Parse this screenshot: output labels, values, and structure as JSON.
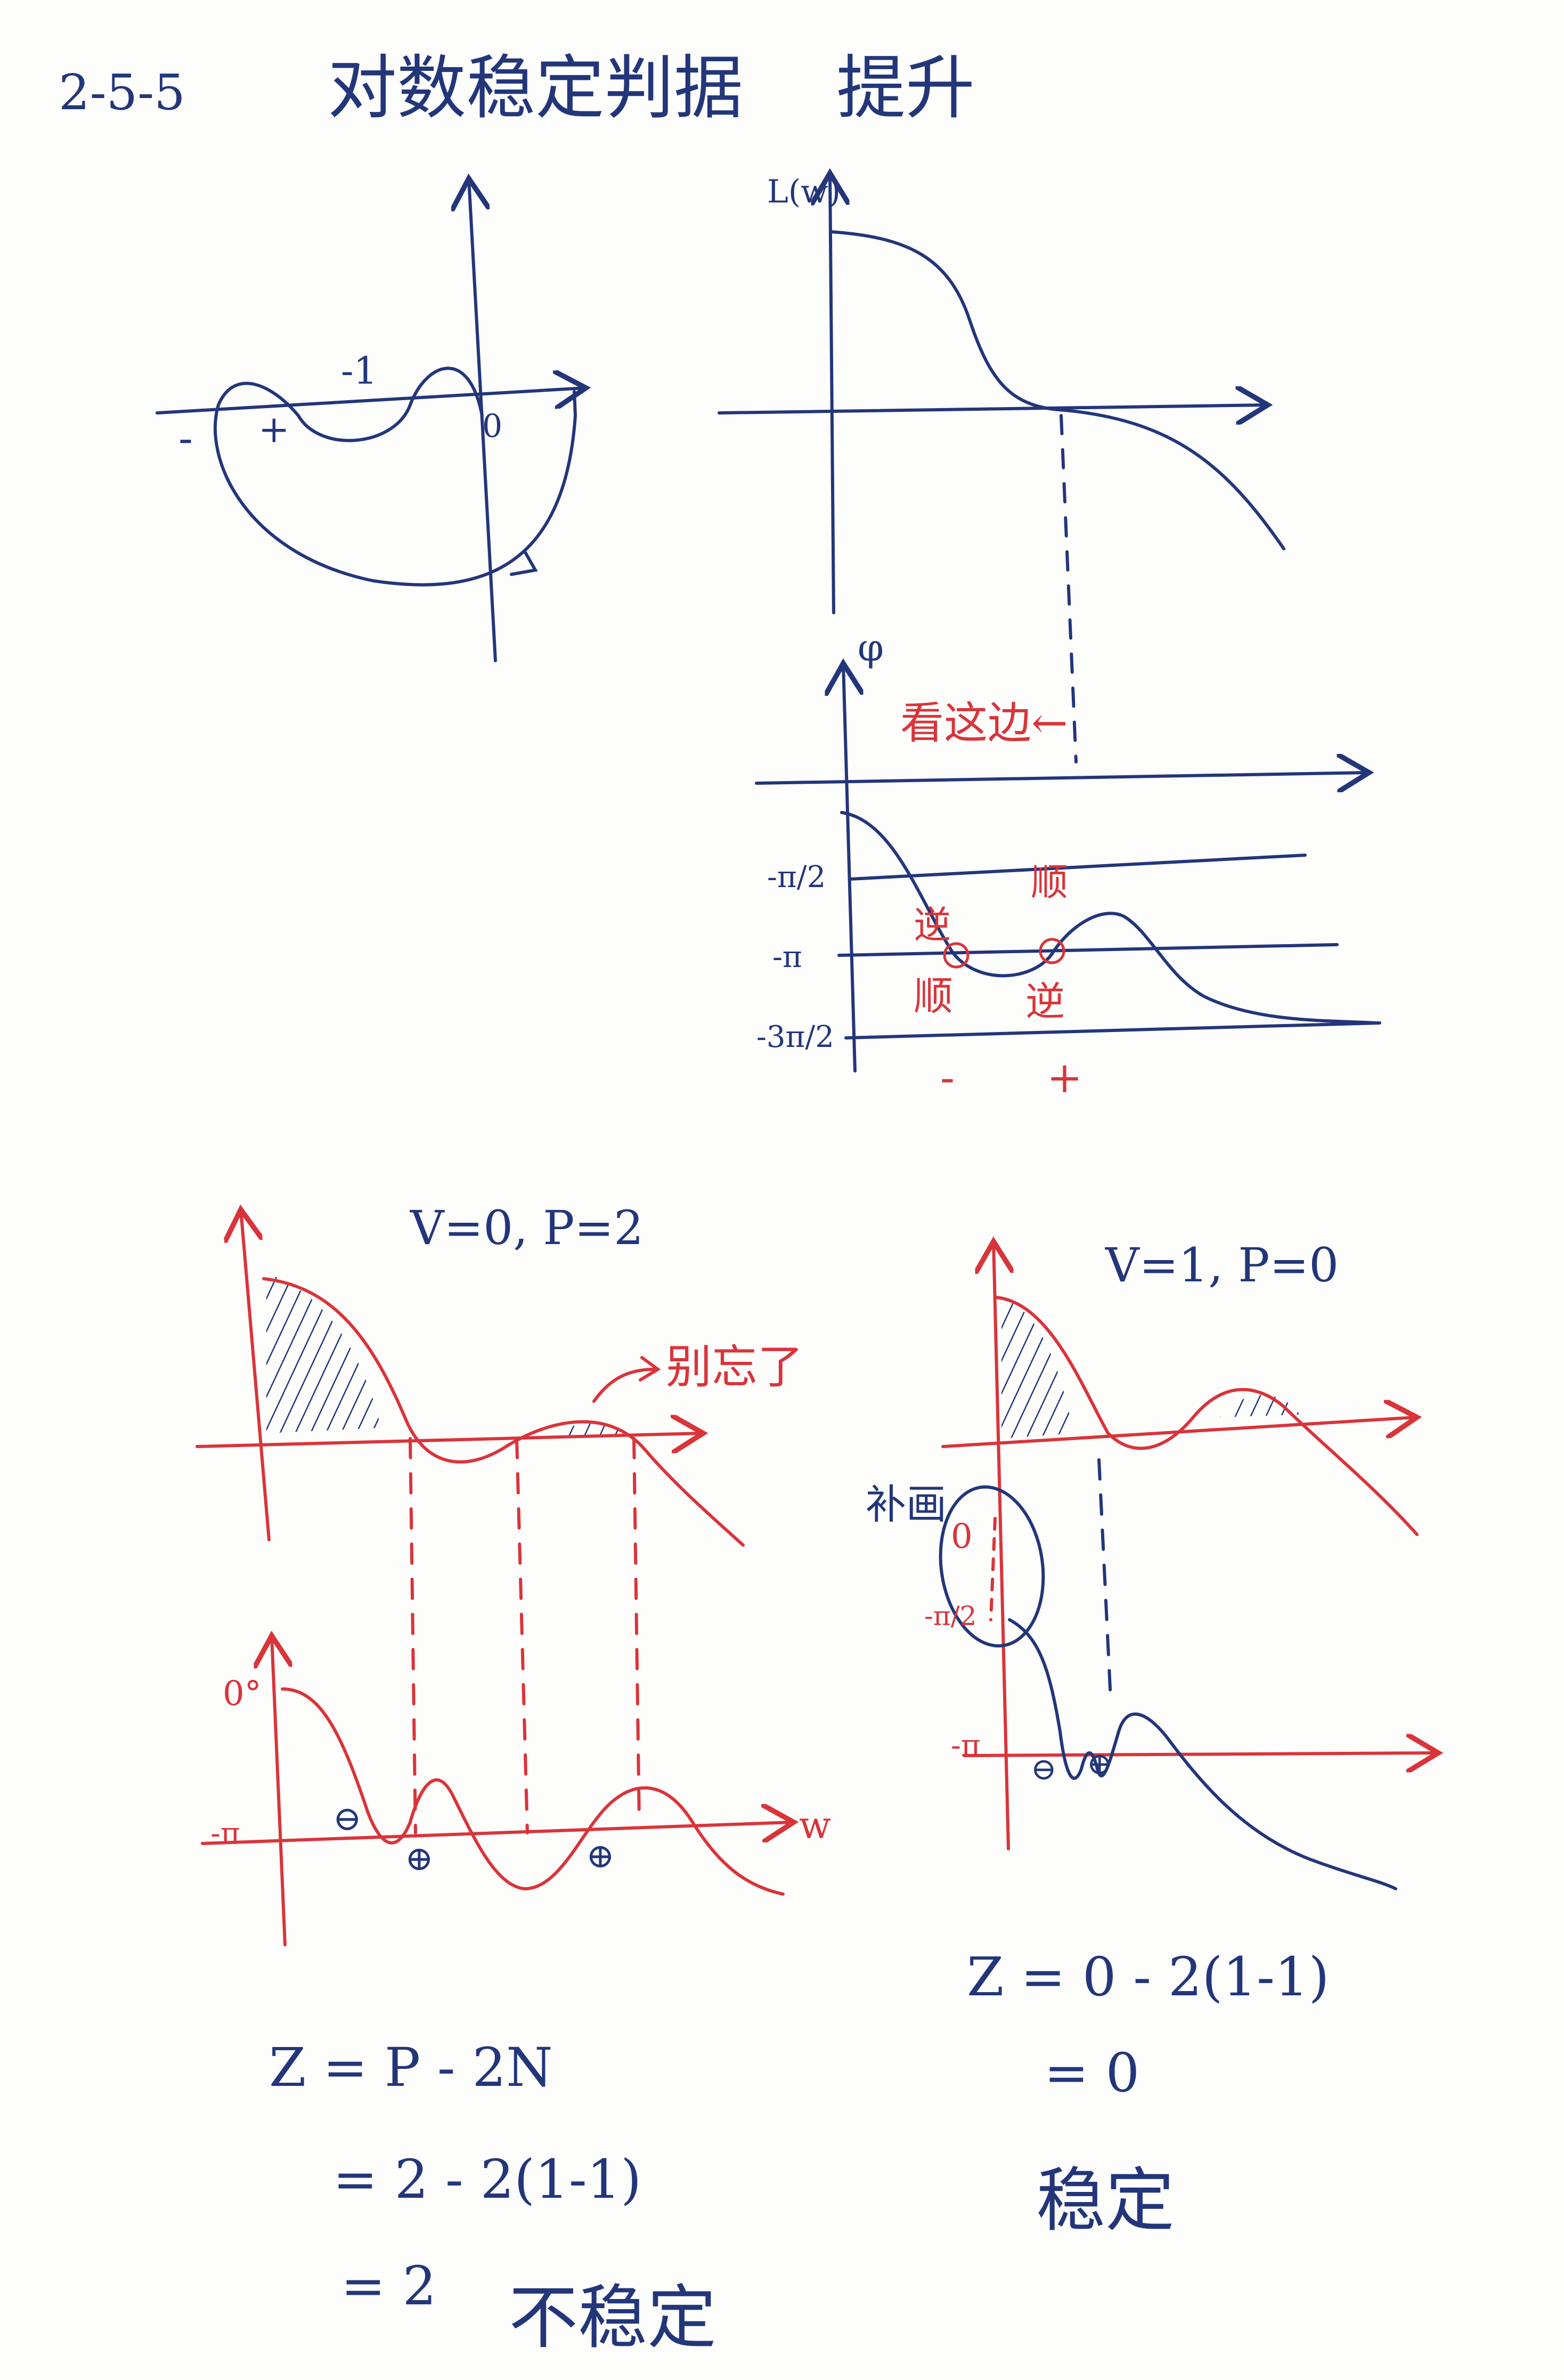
{
  "colors": {
    "ink_blue": "#23367a",
    "ink_red": "#d9343a",
    "paper": "#fdfdfc"
  },
  "header": {
    "number": "2-5-5",
    "title": "对数稳定判据",
    "subtitle": "提升"
  },
  "nyquist": {
    "label_minus1": "-1",
    "label_minus": "-",
    "label_plus": "+",
    "label_zero": "0"
  },
  "bode_top": {
    "mag_label": "L(w)",
    "phase_label": "φ",
    "note": "看这边←",
    "ticks": [
      "-π/2",
      "-π",
      "-3π/2"
    ],
    "ann_ni1": "逆",
    "ann_shun1": "顺",
    "ann_shun2": "顺",
    "ann_ni2": "逆",
    "sign_minus": "-",
    "sign_plus": "+"
  },
  "left_case": {
    "params": "V=0, P=2",
    "note": "别忘了",
    "phase_zero": "0°",
    "phase_pi": "-π",
    "axis_w": "w",
    "circ_minus": "⊖",
    "circ_plus": "⊕",
    "eq1": "Z = P - 2N",
    "eq2": "= 2 - 2(1-1)",
    "eq3": "= 2",
    "verdict": "不稳定"
  },
  "right_case": {
    "params": "V=1, P=0",
    "note": "补画",
    "phase_zero": "0",
    "phase_half": "-π/2",
    "phase_pi": "-π",
    "circ_minus": "⊖",
    "circ_plus": "⊕",
    "eq1": "Z = 0 - 2(1-1)",
    "eq2": "= 0",
    "verdict": "稳定"
  }
}
